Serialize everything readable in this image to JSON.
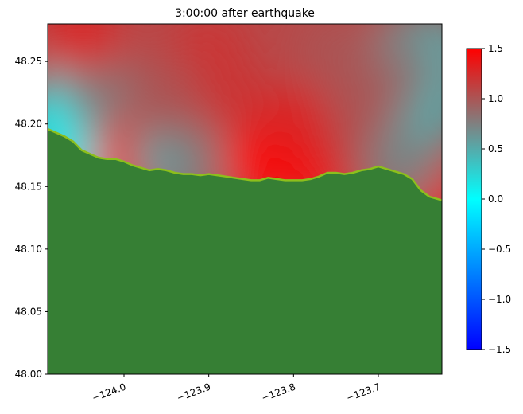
{
  "chart_data": {
    "type": "heatmap",
    "title": "3:00:00 after earthquake",
    "xlabel": "",
    "ylabel": "",
    "xlim": [
      -124.09,
      -123.625
    ],
    "ylim": [
      48.0,
      48.28
    ],
    "x_ticks": [
      -124.0,
      -123.9,
      -123.8,
      -123.7
    ],
    "x_tick_labels": [
      "−124.0",
      "−123.9",
      "−123.8",
      "−123.7"
    ],
    "y_ticks": [
      48.0,
      48.05,
      48.1,
      48.15,
      48.2,
      48.25
    ],
    "y_tick_labels": [
      "48.00",
      "48.05",
      "48.10",
      "48.15",
      "48.20",
      "48.25"
    ],
    "grid": false,
    "colorbar": {
      "range": [
        -1.5,
        1.5
      ],
      "ticks": [
        -1.5,
        -1.0,
        -0.5,
        0.0,
        0.5,
        1.0,
        1.5
      ],
      "tick_labels": [
        "−1.5",
        "−1.0",
        "−0.5",
        "0.0",
        "0.5",
        "1.0",
        "1.5"
      ],
      "stops": [
        {
          "value": -1.5,
          "color": "#0000ff"
        },
        {
          "value": 0.0,
          "color": "#00ffff"
        },
        {
          "value": 0.75,
          "color": "#808080"
        },
        {
          "value": 1.5,
          "color": "#ff0000"
        }
      ]
    },
    "land_color": "#367f34",
    "coast_color": "#8dbf1c",
    "coastline": [
      [
        -124.09,
        48.196
      ],
      [
        -124.07,
        48.19
      ],
      [
        -124.06,
        48.186
      ],
      [
        -124.05,
        48.179
      ],
      [
        -124.04,
        48.176
      ],
      [
        -124.03,
        48.173
      ],
      [
        -124.02,
        48.172
      ],
      [
        -124.01,
        48.172
      ],
      [
        -124.0,
        48.17
      ],
      [
        -123.99,
        48.167
      ],
      [
        -123.98,
        48.165
      ],
      [
        -123.97,
        48.163
      ],
      [
        -123.96,
        48.164
      ],
      [
        -123.95,
        48.163
      ],
      [
        -123.94,
        48.161
      ],
      [
        -123.93,
        48.16
      ],
      [
        -123.92,
        48.16
      ],
      [
        -123.91,
        48.159
      ],
      [
        -123.9,
        48.16
      ],
      [
        -123.89,
        48.159
      ],
      [
        -123.88,
        48.158
      ],
      [
        -123.87,
        48.157
      ],
      [
        -123.86,
        48.156
      ],
      [
        -123.85,
        48.155
      ],
      [
        -123.84,
        48.155
      ],
      [
        -123.83,
        48.157
      ],
      [
        -123.82,
        48.156
      ],
      [
        -123.81,
        48.155
      ],
      [
        -123.8,
        48.155
      ],
      [
        -123.79,
        48.155
      ],
      [
        -123.78,
        48.156
      ],
      [
        -123.77,
        48.158
      ],
      [
        -123.76,
        48.161
      ],
      [
        -123.75,
        48.161
      ],
      [
        -123.74,
        48.16
      ],
      [
        -123.73,
        48.161
      ],
      [
        -123.72,
        48.163
      ],
      [
        -123.71,
        48.164
      ],
      [
        -123.7,
        48.166
      ],
      [
        -123.69,
        48.164
      ],
      [
        -123.68,
        48.162
      ],
      [
        -123.67,
        48.16
      ],
      [
        -123.66,
        48.156
      ],
      [
        -123.65,
        48.147
      ],
      [
        -123.64,
        48.142
      ],
      [
        -123.625,
        48.139
      ]
    ],
    "field_points": [
      {
        "x": -124.05,
        "y": 48.18,
        "value": 0.0
      },
      {
        "x": -124.07,
        "y": 48.215,
        "value": 0.3
      },
      {
        "x": -124.085,
        "y": 48.195,
        "value": 0.1
      },
      {
        "x": -124.04,
        "y": 48.2,
        "value": 0.15
      },
      {
        "x": -124.03,
        "y": 48.23,
        "value": 0.8
      },
      {
        "x": -124.0,
        "y": 48.19,
        "value": 0.8
      },
      {
        "x": -123.99,
        "y": 48.172,
        "value": 1.5
      },
      {
        "x": -123.95,
        "y": 48.175,
        "value": 0.6
      },
      {
        "x": -123.93,
        "y": 48.17,
        "value": 0.5
      },
      {
        "x": -123.9,
        "y": 48.17,
        "value": 0.8
      },
      {
        "x": -123.84,
        "y": 48.17,
        "value": 1.5
      },
      {
        "x": -123.8,
        "y": 48.17,
        "value": 1.5
      },
      {
        "x": -123.76,
        "y": 48.17,
        "value": 1.5
      },
      {
        "x": -123.83,
        "y": 48.19,
        "value": 1.5
      },
      {
        "x": -123.8,
        "y": 48.2,
        "value": 1.3
      },
      {
        "x": -123.73,
        "y": 48.18,
        "value": 1.2
      },
      {
        "x": -123.7,
        "y": 48.18,
        "value": 1.0
      },
      {
        "x": -123.65,
        "y": 48.2,
        "value": 0.6
      },
      {
        "x": -123.635,
        "y": 48.22,
        "value": 0.5
      },
      {
        "x": -123.635,
        "y": 48.26,
        "value": 0.4
      },
      {
        "x": -123.66,
        "y": 48.26,
        "value": 0.6
      },
      {
        "x": -123.68,
        "y": 48.24,
        "value": 0.8
      },
      {
        "x": -123.64,
        "y": 48.145,
        "value": 1.4
      },
      {
        "x": -123.67,
        "y": 48.165,
        "value": 0.7
      },
      {
        "x": -124.05,
        "y": 48.27,
        "value": 1.3
      },
      {
        "x": -123.9,
        "y": 48.26,
        "value": 1.2
      },
      {
        "x": -123.75,
        "y": 48.26,
        "value": 1.0
      },
      {
        "x": -123.95,
        "y": 48.22,
        "value": 1.0
      },
      {
        "x": -123.87,
        "y": 48.22,
        "value": 1.2
      },
      {
        "x": -123.72,
        "y": 48.22,
        "value": 1.0
      }
    ]
  }
}
